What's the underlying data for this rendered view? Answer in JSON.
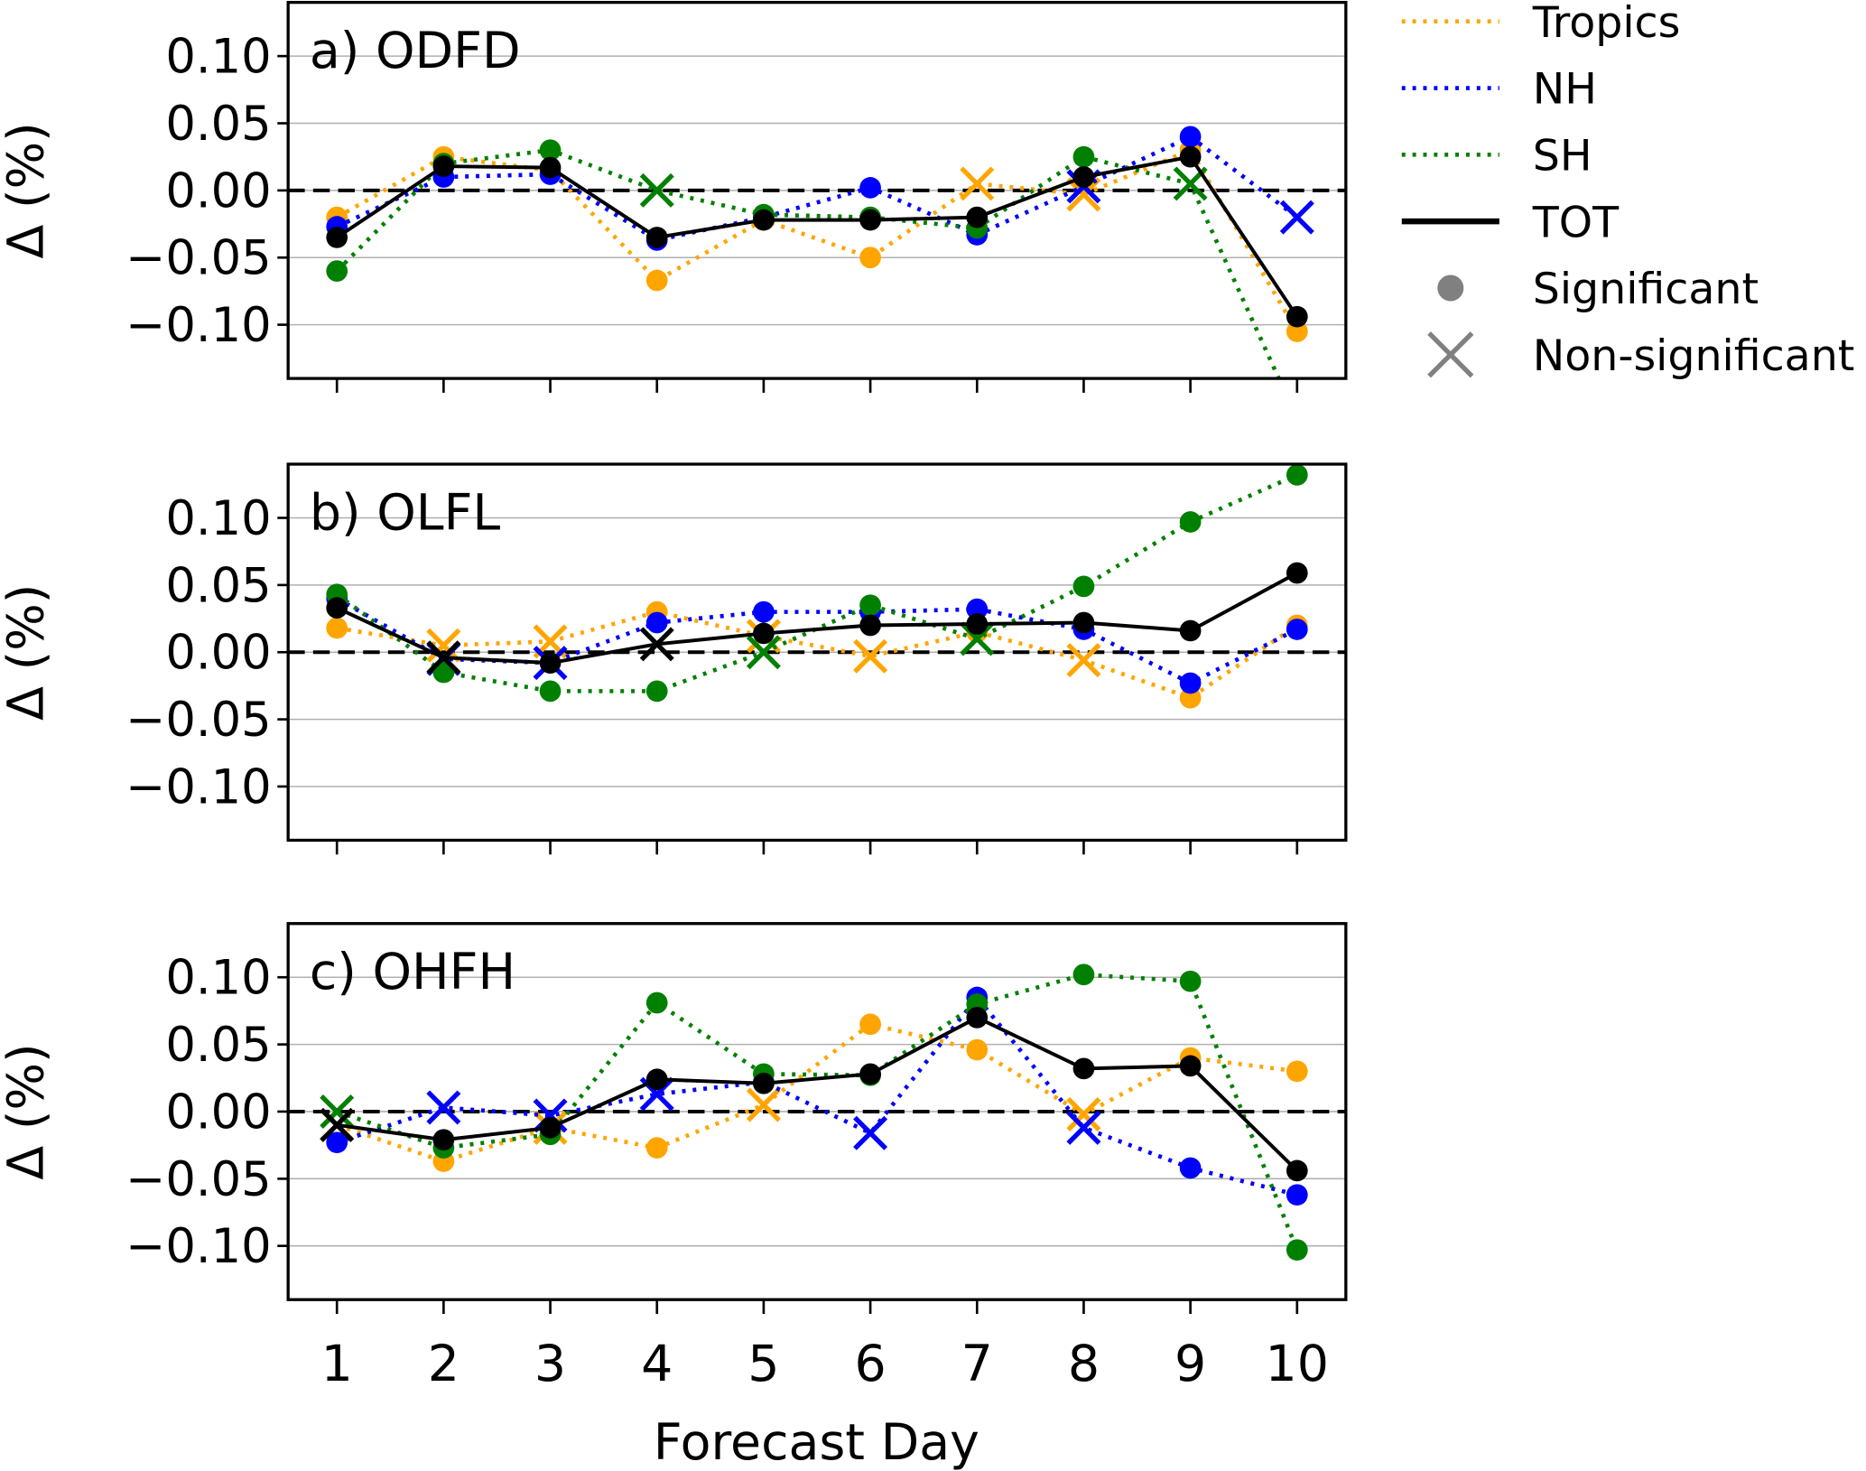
{
  "colors": {
    "Tropics": "#ffa500",
    "NH": "#0000ff",
    "SH": "#008000",
    "TOT": "#000000"
  },
  "legend": {
    "items": [
      "Tropics",
      "NH",
      "SH",
      "TOT",
      "Significant",
      "Non-significant"
    ],
    "placement": "right-outside-top"
  },
  "xlabel": "Forecast Day",
  "ylabel": "Δ (%)",
  "chart_data": [
    {
      "type": "line",
      "title": "a) ODFD",
      "x": [
        1,
        2,
        3,
        4,
        5,
        6,
        7,
        8,
        9,
        10
      ],
      "ylim": [
        -0.14,
        0.14
      ],
      "yticks": [
        "0.10",
        "0.05",
        "0.00",
        "−0.05",
        "−0.10"
      ],
      "grid": true,
      "series": [
        {
          "name": "Tropics",
          "values": [
            -0.02,
            0.025,
            0.015,
            -0.067,
            -0.022,
            -0.05,
            0.005,
            -0.003,
            0.03,
            -0.105
          ],
          "significant": [
            true,
            true,
            true,
            true,
            true,
            true,
            false,
            false,
            true,
            true
          ]
        },
        {
          "name": "NH",
          "values": [
            -0.027,
            0.01,
            0.012,
            -0.037,
            -0.02,
            0.002,
            -0.033,
            0.003,
            0.04,
            -0.02
          ],
          "significant": [
            true,
            true,
            true,
            true,
            true,
            true,
            true,
            false,
            true,
            false
          ]
        },
        {
          "name": "SH",
          "values": [
            -0.06,
            0.02,
            0.03,
            0.0,
            -0.018,
            -0.02,
            -0.028,
            0.025,
            0.005,
            -0.17
          ],
          "significant": [
            true,
            true,
            true,
            false,
            true,
            true,
            true,
            true,
            false,
            true
          ]
        },
        {
          "name": "TOT",
          "values": [
            -0.035,
            0.018,
            0.017,
            -0.035,
            -0.022,
            -0.022,
            -0.02,
            0.01,
            0.025,
            -0.094
          ],
          "significant": [
            true,
            true,
            true,
            true,
            true,
            true,
            true,
            true,
            true,
            true
          ]
        }
      ]
    },
    {
      "type": "line",
      "title": "b) OLFL",
      "x": [
        1,
        2,
        3,
        4,
        5,
        6,
        7,
        8,
        9,
        10
      ],
      "ylim": [
        -0.14,
        0.14
      ],
      "yticks": [
        "0.10",
        "0.05",
        "0.00",
        "−0.05",
        "−0.10"
      ],
      "grid": true,
      "series": [
        {
          "name": "Tropics",
          "values": [
            0.018,
            0.005,
            0.008,
            0.03,
            0.012,
            -0.003,
            0.015,
            -0.006,
            -0.034,
            0.02
          ],
          "significant": [
            true,
            false,
            false,
            true,
            false,
            false,
            true,
            false,
            true,
            true
          ]
        },
        {
          "name": "NH",
          "values": [
            0.04,
            -0.005,
            -0.008,
            0.022,
            0.03,
            0.03,
            0.032,
            0.017,
            -0.023,
            0.017
          ],
          "significant": [
            true,
            false,
            false,
            true,
            true,
            true,
            true,
            true,
            true,
            true
          ]
        },
        {
          "name": "SH",
          "values": [
            0.043,
            -0.015,
            -0.029,
            -0.029,
            0.0,
            0.035,
            0.01,
            0.049,
            0.097,
            0.132
          ],
          "significant": [
            true,
            true,
            true,
            true,
            false,
            true,
            false,
            true,
            true,
            true
          ]
        },
        {
          "name": "TOT",
          "values": [
            0.033,
            -0.004,
            -0.008,
            0.006,
            0.014,
            0.02,
            0.021,
            0.022,
            0.016,
            0.059
          ],
          "significant": [
            true,
            false,
            true,
            false,
            true,
            true,
            true,
            true,
            true,
            true
          ]
        }
      ]
    },
    {
      "type": "line",
      "title": "c) OHFH",
      "x": [
        1,
        2,
        3,
        4,
        5,
        6,
        7,
        8,
        9,
        10
      ],
      "ylim": [
        -0.14,
        0.14
      ],
      "yticks": [
        "0.10",
        "0.05",
        "0.00",
        "−0.05",
        "−0.10"
      ],
      "grid": true,
      "series": [
        {
          "name": "Tropics",
          "values": [
            -0.01,
            -0.037,
            -0.012,
            -0.027,
            0.005,
            0.065,
            0.046,
            -0.002,
            0.04,
            0.03
          ],
          "significant": [
            false,
            true,
            false,
            true,
            false,
            true,
            true,
            false,
            true,
            true
          ]
        },
        {
          "name": "NH",
          "values": [
            -0.023,
            0.003,
            -0.003,
            0.013,
            0.022,
            -0.016,
            0.085,
            -0.012,
            -0.042,
            -0.062
          ],
          "significant": [
            true,
            false,
            false,
            false,
            true,
            false,
            true,
            false,
            true,
            true
          ]
        },
        {
          "name": "SH",
          "values": [
            0.0,
            -0.027,
            -0.017,
            0.081,
            0.028,
            0.027,
            0.08,
            0.102,
            0.097,
            -0.103
          ],
          "significant": [
            false,
            true,
            true,
            true,
            true,
            true,
            true,
            true,
            true,
            true
          ]
        },
        {
          "name": "TOT",
          "values": [
            -0.01,
            -0.021,
            -0.012,
            0.024,
            0.021,
            0.028,
            0.07,
            0.032,
            0.034,
            -0.044
          ],
          "significant": [
            false,
            true,
            true,
            true,
            true,
            true,
            true,
            true,
            true,
            true
          ]
        }
      ]
    }
  ]
}
